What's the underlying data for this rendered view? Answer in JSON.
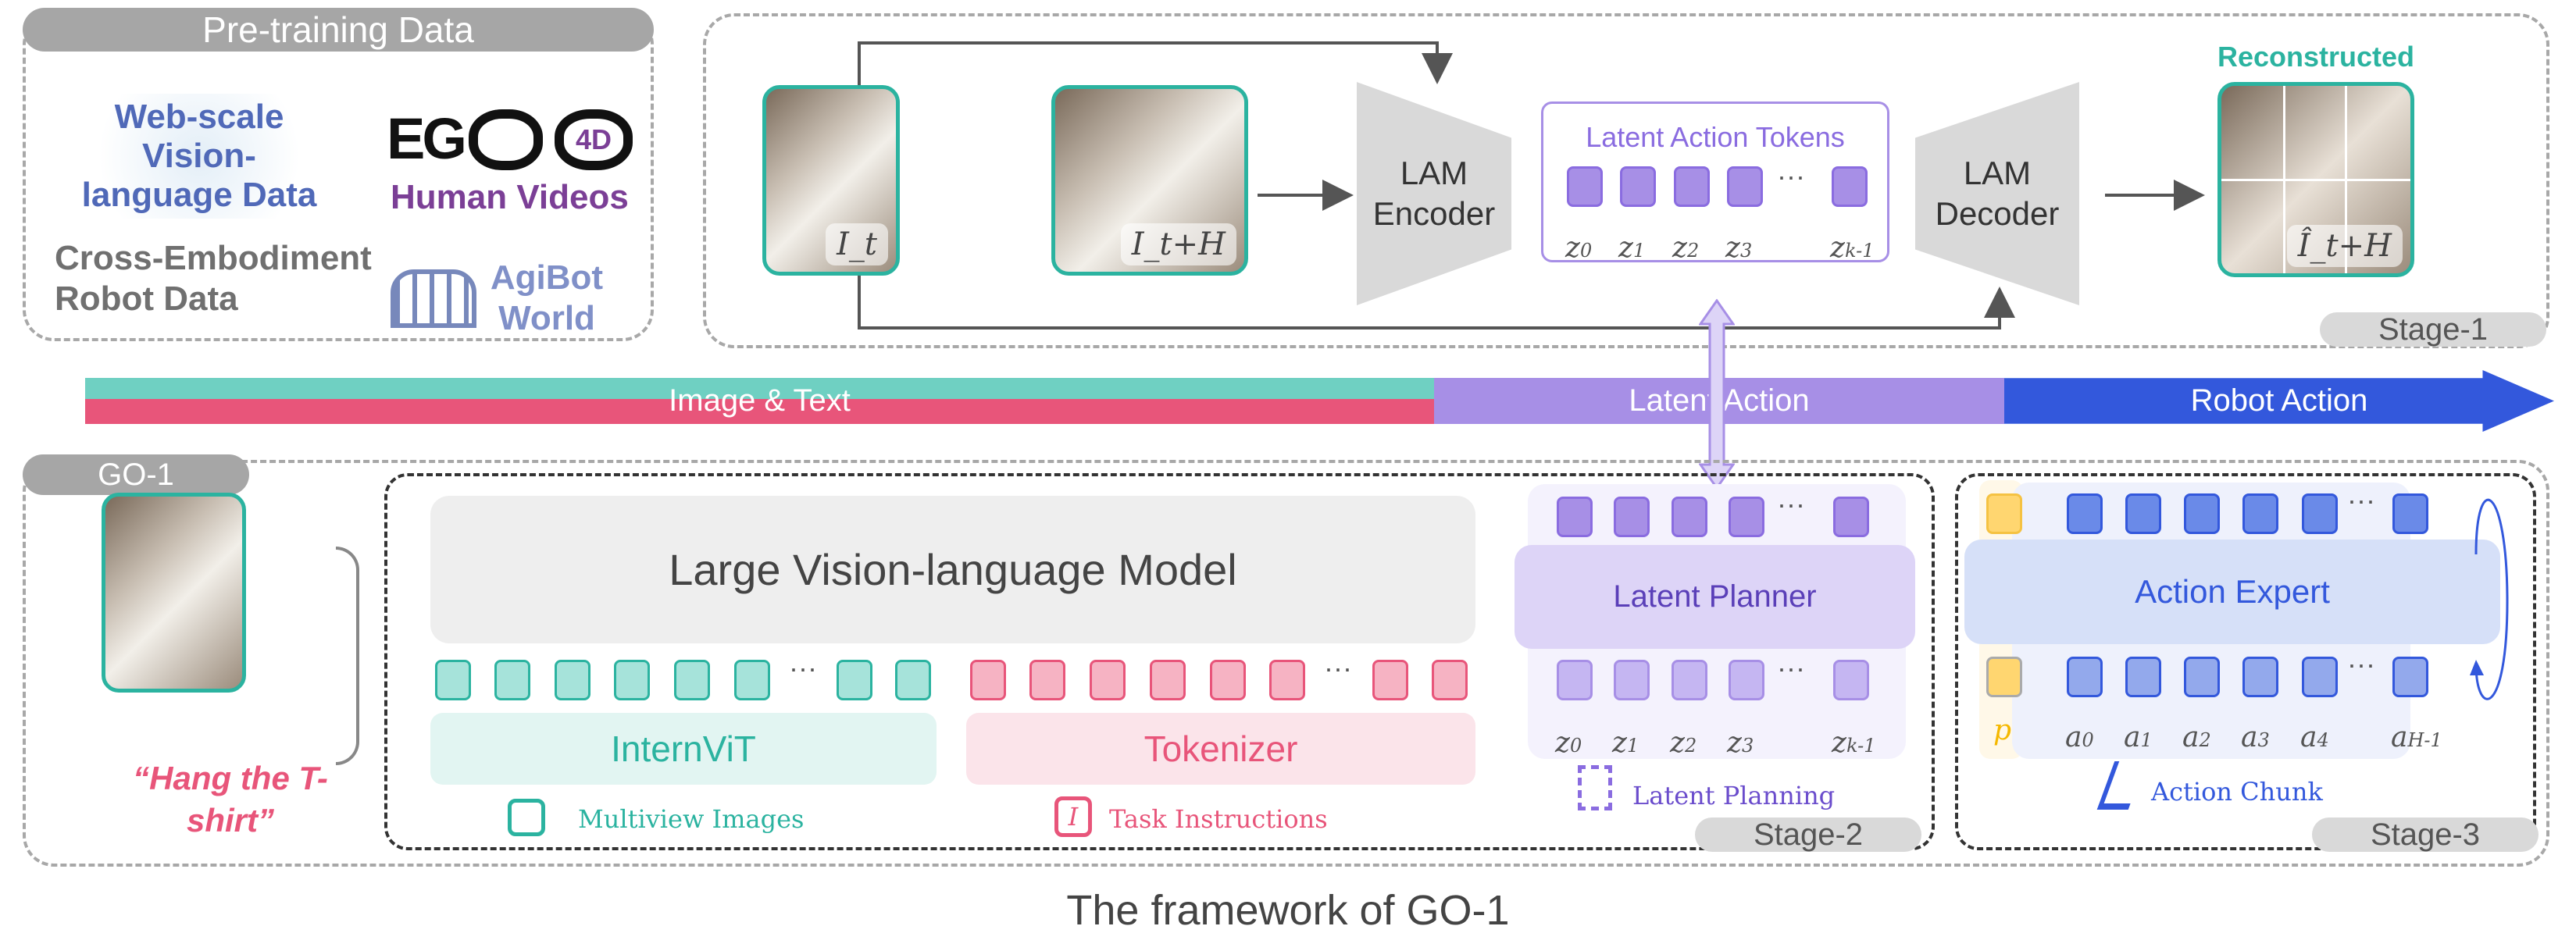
{
  "pretraining": {
    "title": "Pre-training Data",
    "web": "Web-scale Vision-language Data",
    "ego_logo": "EGO 4D",
    "human": "Human Videos",
    "cross": "Cross-Embodiment Robot Data",
    "agibot": "AgiBot World"
  },
  "stage1": {
    "img_t": "I_t",
    "img_th": "I_t+H",
    "encoder": "LAM Encoder",
    "tokens_title": "Latent Action Tokens",
    "z_labels": [
      "z0",
      "z1",
      "z2",
      "z3",
      "zk-1"
    ],
    "decoder": "LAM Decoder",
    "reconstructed": "Reconstructed",
    "img_hat": "Î_t+H",
    "badge": "Stage-1"
  },
  "bar": {
    "image_text": "Image & Text",
    "latent": "Latent Action",
    "robot": "Robot Action"
  },
  "go1": {
    "badge": "GO-1",
    "instruction": "“Hang the T-shirt”",
    "lvlm": "Large Vision-language Model",
    "internvit": "InternViT",
    "tokenizer": "Tokenizer",
    "multiview": "Multiview Images",
    "task": "Task Instructions",
    "latent_planner": "Latent Planner",
    "latent_planning": "Latent Planning",
    "stage2": "Stage-2",
    "action_expert": "Action Expert",
    "p_label": "p",
    "a_labels": [
      "a0",
      "a1",
      "a2",
      "a3",
      "a4",
      "aH-1"
    ],
    "action_chunk": "Action Chunk",
    "stage3": "Stage-3"
  },
  "caption": "The framework of GO-1",
  "colors": {
    "teal": "#2bb3a0",
    "pink": "#e8557a",
    "purple": "#a78fe6",
    "blue": "#3358dc",
    "yellow": "#ffd670"
  }
}
